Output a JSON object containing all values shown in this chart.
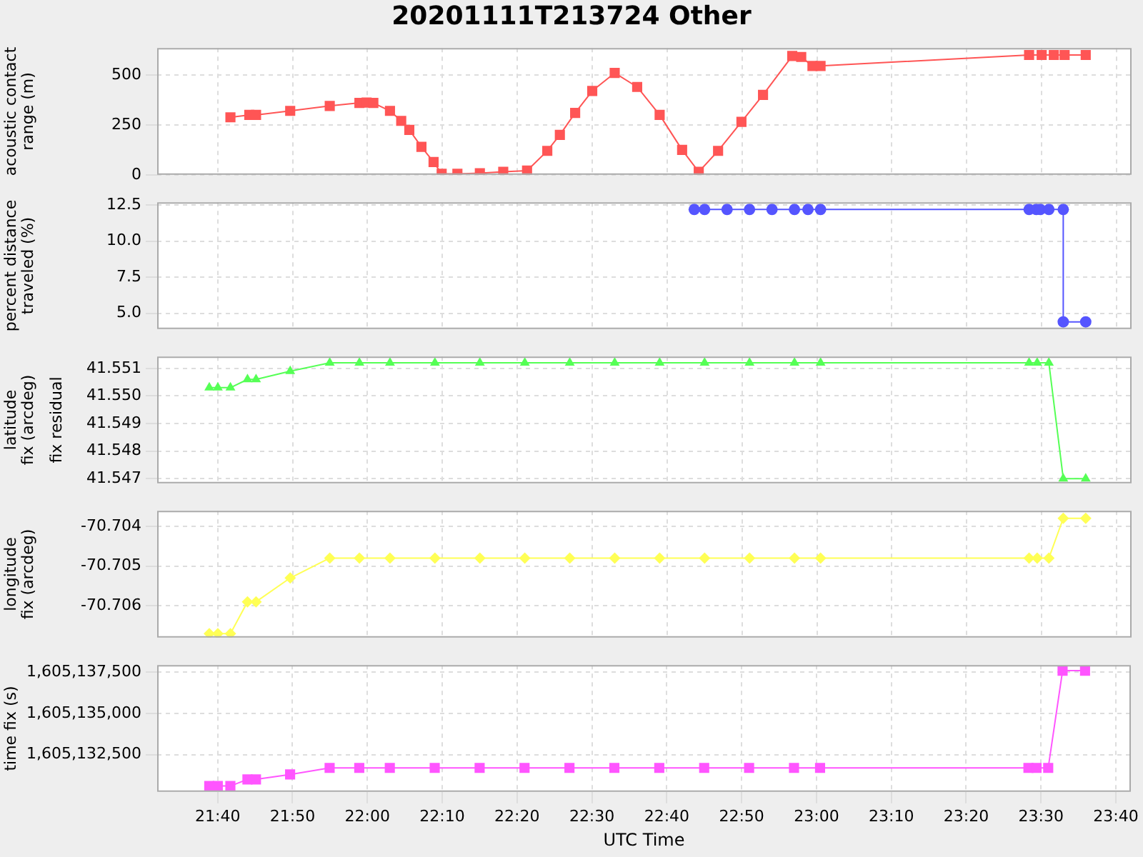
{
  "chart_data": [
    {
      "type": "line",
      "title": "20201111T213724 Other",
      "ylabel": "acoustic contact range (m)",
      "color": "#ff5555",
      "marker": "square",
      "grid": true,
      "tick_labels": "y",
      "x": [
        21.695,
        21.737,
        21.752,
        21.828,
        21.916,
        21.982,
        21.998,
        22.013,
        22.05,
        22.075,
        22.093,
        22.12,
        22.147,
        22.165,
        22.2,
        22.25,
        22.302,
        22.355,
        22.4,
        22.428,
        22.462,
        22.5,
        22.55,
        22.6,
        22.65,
        22.7,
        22.737,
        22.78,
        22.832,
        22.88,
        22.945,
        22.965,
        22.99,
        23.008,
        23.472,
        23.5,
        23.527,
        23.551,
        23.598
      ],
      "values": [
        288,
        300,
        300,
        320,
        345,
        360,
        362,
        360,
        320,
        270,
        225,
        140,
        64,
        5,
        5,
        8,
        15,
        21,
        120,
        200,
        310,
        420,
        510,
        440,
        300,
        125,
        15,
        120,
        265,
        400,
        595,
        590,
        545,
        545,
        600,
        600,
        600,
        600,
        600
      ],
      "xlim": [
        21.532,
        23.7
      ],
      "xticks": [
        {
          "value": 21.6667,
          "label": null
        },
        {
          "value": 21.8333,
          "label": null
        },
        {
          "value": 22,
          "label": null
        },
        {
          "value": 22.1667,
          "label": null
        },
        {
          "value": 22.3333,
          "label": null
        },
        {
          "value": 22.5,
          "label": null
        },
        {
          "value": 22.6667,
          "label": null
        },
        {
          "value": 22.8333,
          "label": null
        },
        {
          "value": 23,
          "label": null
        },
        {
          "value": 23.1667,
          "label": null
        },
        {
          "value": 23.3333,
          "label": null
        },
        {
          "value": 23.5,
          "label": null
        },
        {
          "value": 23.6667,
          "label": null
        }
      ],
      "ylim": [
        0,
        635
      ],
      "yticks": [
        0,
        250,
        500
      ]
    },
    {
      "type": "line",
      "ylabel": "percent distance traveled (%)",
      "color": "#5555ff",
      "marker": "circle",
      "grid": true,
      "tick_labels": "y",
      "x": [
        22.727,
        22.75,
        22.8,
        22.85,
        22.9,
        22.95,
        22.98,
        23.008,
        23.472,
        23.488,
        23.497,
        23.516,
        23.548,
        23.548,
        23.598
      ],
      "values": [
        12.2,
        12.2,
        12.2,
        12.2,
        12.2,
        12.2,
        12.2,
        12.2,
        12.2,
        12.2,
        12.2,
        12.2,
        12.2,
        4.4,
        4.4
      ],
      "xlim": [
        21.532,
        23.7
      ],
      "xticks": [
        {
          "value": 21.6667,
          "label": null
        },
        {
          "value": 21.8333,
          "label": null
        },
        {
          "value": 22,
          "label": null
        },
        {
          "value": 22.1667,
          "label": null
        },
        {
          "value": 22.3333,
          "label": null
        },
        {
          "value": 22.5,
          "label": null
        },
        {
          "value": 22.6667,
          "label": null
        },
        {
          "value": 22.8333,
          "label": null
        },
        {
          "value": 23,
          "label": null
        },
        {
          "value": 23.1667,
          "label": null
        },
        {
          "value": 23.3333,
          "label": null
        },
        {
          "value": 23.5,
          "label": null
        },
        {
          "value": 23.6667,
          "label": null
        }
      ],
      "ylim": [
        3.9,
        12.7
      ],
      "yticks": [
        {
          "value": 5,
          "label": "5.0"
        },
        7.5,
        {
          "value": 10,
          "label": "10.0"
        },
        12.5
      ]
    },
    {
      "type": "line",
      "ylabel": "latitude fix (arcdeg)",
      "annotations": [
        "fix residual"
      ],
      "color": "#55ff55",
      "marker": "triangle",
      "grid": true,
      "tick_labels": "y",
      "x": [
        21.648,
        21.667,
        21.695,
        21.733,
        21.752,
        21.828,
        21.916,
        21.982,
        22.05,
        22.15,
        22.25,
        22.35,
        22.45,
        22.55,
        22.65,
        22.75,
        22.85,
        22.95,
        23.008,
        23.472,
        23.49,
        23.516,
        23.548,
        23.598
      ],
      "values": [
        41.5503,
        41.5503,
        41.5503,
        41.5506,
        41.5506,
        41.5509,
        41.5512,
        41.5512,
        41.5512,
        41.5512,
        41.5512,
        41.5512,
        41.5512,
        41.5512,
        41.5512,
        41.5512,
        41.5512,
        41.5512,
        41.5512,
        41.5512,
        41.5512,
        41.5512,
        41.547,
        41.547
      ],
      "xlim": [
        21.532,
        23.7
      ],
      "xticks": [
        {
          "value": 21.6667,
          "label": null
        },
        {
          "value": 21.8333,
          "label": null
        },
        {
          "value": 22,
          "label": null
        },
        {
          "value": 22.1667,
          "label": null
        },
        {
          "value": 22.3333,
          "label": null
        },
        {
          "value": 22.5,
          "label": null
        },
        {
          "value": 22.6667,
          "label": null
        },
        {
          "value": 22.8333,
          "label": null
        },
        {
          "value": 23,
          "label": null
        },
        {
          "value": 23.1667,
          "label": null
        },
        {
          "value": 23.3333,
          "label": null
        },
        {
          "value": 23.5,
          "label": null
        },
        {
          "value": 23.6667,
          "label": null
        }
      ],
      "ylim": [
        41.54683,
        41.55143
      ],
      "yticks": [
        41.547,
        41.548,
        41.549,
        {
          "value": 41.55,
          "label": "41.550"
        },
        41.551
      ]
    },
    {
      "type": "line",
      "ylabel": "longitude fix (arcdeg)",
      "color": "#ffff55",
      "marker": "diamond",
      "grid": true,
      "tick_labels": "y",
      "x": [
        21.648,
        21.667,
        21.695,
        21.733,
        21.752,
        21.828,
        21.916,
        21.982,
        22.05,
        22.15,
        22.25,
        22.35,
        22.45,
        22.55,
        22.65,
        22.75,
        22.85,
        22.95,
        23.008,
        23.472,
        23.49,
        23.516,
        23.548,
        23.598
      ],
      "values": [
        -70.7067,
        -70.7067,
        -70.7067,
        -70.7059,
        -70.7059,
        -70.7053,
        -70.7048,
        -70.7048,
        -70.7048,
        -70.7048,
        -70.7048,
        -70.7048,
        -70.7048,
        -70.7048,
        -70.7048,
        -70.7048,
        -70.7048,
        -70.7048,
        -70.7048,
        -70.7048,
        -70.7048,
        -70.7048,
        -70.7038,
        -70.7038
      ],
      "xlim": [
        21.532,
        23.7
      ],
      "xticks": [
        {
          "value": 21.6667,
          "label": null
        },
        {
          "value": 21.8333,
          "label": null
        },
        {
          "value": 22,
          "label": null
        },
        {
          "value": 22.1667,
          "label": null
        },
        {
          "value": 22.3333,
          "label": null
        },
        {
          "value": 22.5,
          "label": null
        },
        {
          "value": 22.6667,
          "label": null
        },
        {
          "value": 22.8333,
          "label": null
        },
        {
          "value": 23,
          "label": null
        },
        {
          "value": 23.1667,
          "label": null
        },
        {
          "value": 23.3333,
          "label": null
        },
        {
          "value": 23.5,
          "label": null
        },
        {
          "value": 23.6667,
          "label": null
        }
      ],
      "ylim": [
        -70.7068,
        -70.70361
      ],
      "yticks": [
        -70.706,
        -70.705,
        -70.704
      ]
    },
    {
      "type": "line",
      "ylabel": "time fix (s)",
      "xlabel": "UTC Time",
      "color": "#ff55ff",
      "marker": "square",
      "grid": true,
      "x": [
        21.648,
        21.667,
        21.695,
        21.733,
        21.752,
        21.828,
        21.916,
        21.982,
        22.05,
        22.15,
        22.25,
        22.35,
        22.45,
        22.55,
        22.65,
        22.75,
        22.85,
        22.95,
        23.008,
        23.472,
        23.49,
        23.516,
        23.548,
        23.598
      ],
      "values": [
        1605130600,
        1605130600,
        1605130600,
        1605131000,
        1605131000,
        1605131300,
        1605131700,
        1605131700,
        1605131700,
        1605131700,
        1605131700,
        1605131700,
        1605131700,
        1605131700,
        1605131700,
        1605131700,
        1605131700,
        1605131700,
        1605131700,
        1605131700,
        1605131700,
        1605131700,
        1605137600,
        1605137600
      ],
      "xlim": [
        21.532,
        23.7
      ],
      "xticks": [
        {
          "value": 21.6667,
          "label": "21:40"
        },
        {
          "value": 21.8333,
          "label": "21:50"
        },
        {
          "value": 22,
          "label": "22:00"
        },
        {
          "value": 22.1667,
          "label": "22:10"
        },
        {
          "value": 22.3333,
          "label": "22:20"
        },
        {
          "value": 22.5,
          "label": "22:30"
        },
        {
          "value": 22.6667,
          "label": "22:40"
        },
        {
          "value": 22.8333,
          "label": "22:50"
        },
        {
          "value": 23,
          "label": "23:00"
        },
        {
          "value": 23.1667,
          "label": "23:10"
        },
        {
          "value": 23.3333,
          "label": "23:20"
        },
        {
          "value": 23.5,
          "label": "23:30"
        },
        {
          "value": 23.6667,
          "label": "23:40"
        }
      ],
      "ylim": [
        1605130244,
        1605137943
      ],
      "yticks": [
        {
          "value": 1605132500,
          "label": "1,605,132,500"
        },
        {
          "value": 1605135000,
          "label": "1,605,135,000"
        },
        {
          "value": 1605137500,
          "label": "1,605,137,500"
        }
      ]
    }
  ]
}
